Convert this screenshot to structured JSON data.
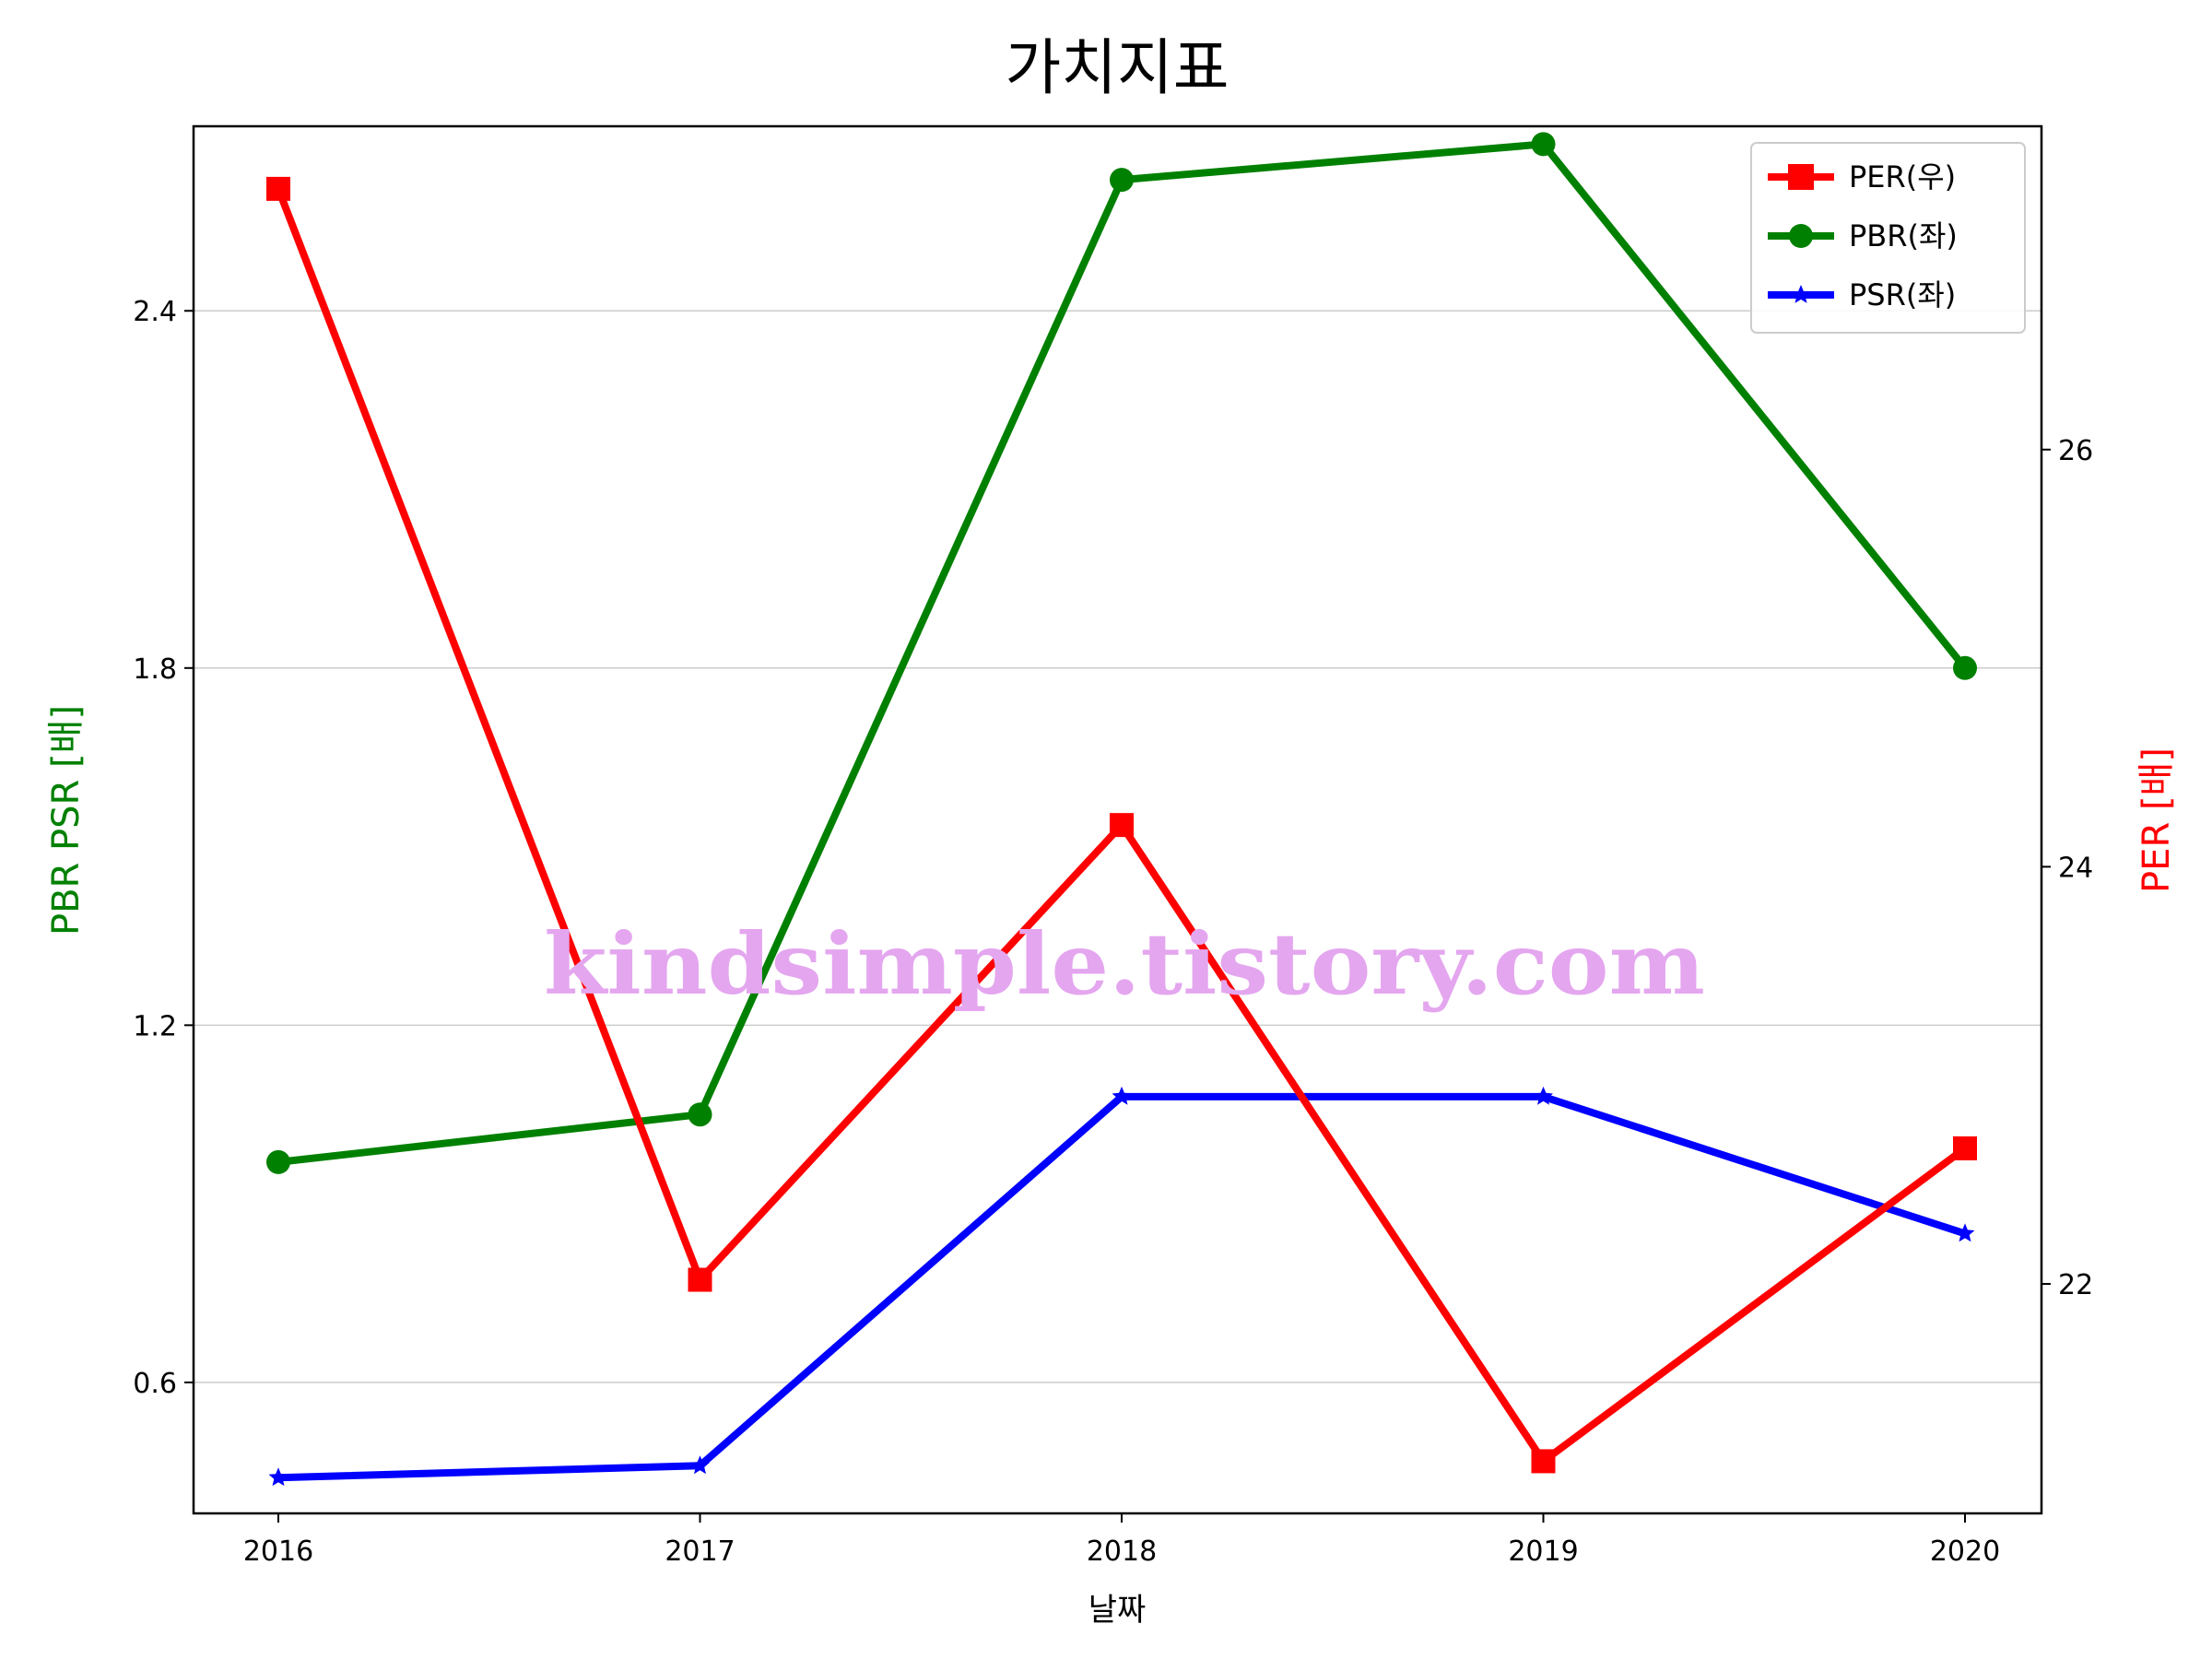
{
  "chart_data": {
    "type": "line",
    "title": "가치지표",
    "xlabel": "날짜",
    "ylabel_left": "PBR PSR [배]",
    "ylabel_right": "PER [배]",
    "categories": [
      "2016",
      "2017",
      "2018",
      "2019",
      "2020"
    ],
    "ylim_left": [
      0.38,
      2.71
    ],
    "ylim_right": [
      20.9,
      27.55
    ],
    "yticks_left": [
      "0.6",
      "1.2",
      "1.8",
      "2.4"
    ],
    "yticks_right": [
      "22",
      "24",
      "26"
    ],
    "grid": "horizontal",
    "legend_position": "top-right",
    "series": [
      {
        "name": "PER(우)",
        "axis": "right",
        "color": "#ff0000",
        "marker": "square",
        "values": [
          27.25,
          22.02,
          24.2,
          21.15,
          22.65
        ]
      },
      {
        "name": "PBR(좌)",
        "axis": "left",
        "color": "#008000",
        "marker": "circle",
        "values": [
          0.97,
          1.05,
          2.62,
          2.68,
          1.8
        ]
      },
      {
        "name": "PSR(좌)",
        "axis": "left",
        "color": "#0000ff",
        "marker": "star",
        "values": [
          0.44,
          0.46,
          1.08,
          1.08,
          0.85
        ]
      }
    ],
    "watermark": "kindsimple.tistory.com"
  }
}
